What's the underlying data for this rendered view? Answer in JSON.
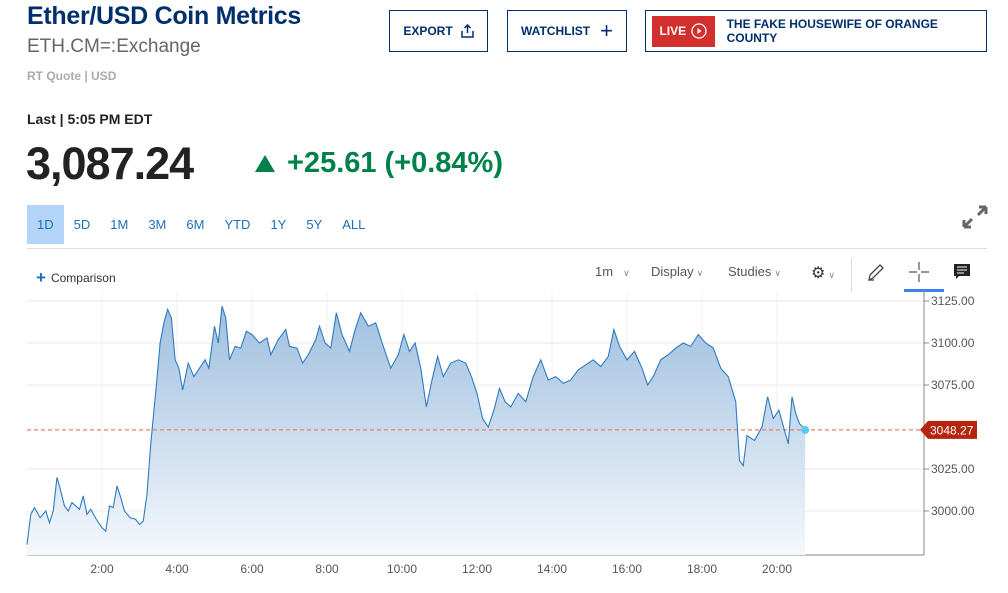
{
  "header": {
    "title": "Ether/USD Coin Metrics",
    "symbol": "ETH.CM=:Exchange",
    "quote_type": "RT Quote | USD"
  },
  "buttons": {
    "export": "EXPORT",
    "watchlist": "WATCHLIST",
    "live_badge": "LIVE",
    "live_show": "THE FAKE HOUSEWIFE OF ORANGE COUNTY"
  },
  "quote": {
    "last_label": "Last | 5:05 PM EDT",
    "price": "3,087.24",
    "change": "+25.61",
    "change_pct": "(+0.84%)",
    "direction": "up",
    "color_up": "#00804a"
  },
  "ranges": [
    {
      "label": "1D",
      "active": true
    },
    {
      "label": "5D"
    },
    {
      "label": "1M"
    },
    {
      "label": "3M"
    },
    {
      "label": "6M"
    },
    {
      "label": "YTD"
    },
    {
      "label": "1Y"
    },
    {
      "label": "5Y"
    },
    {
      "label": "ALL"
    }
  ],
  "toolbar": {
    "comparison": "Comparison",
    "interval": "1m",
    "display": "Display",
    "studies": "Studies"
  },
  "chart_data": {
    "type": "area",
    "xlabel": "",
    "ylabel": "",
    "x_ticks": [
      "2:00",
      "4:00",
      "6:00",
      "8:00",
      "10:00",
      "12:00",
      "14:00",
      "16:00",
      "18:00",
      "20:00"
    ],
    "x_tick_hours": [
      2,
      4,
      6,
      8,
      10,
      12,
      14,
      16,
      18,
      20
    ],
    "y_ticks": [
      "3125.00",
      "3100.00",
      "3075.00",
      "3025.00",
      "3000.00"
    ],
    "y_tick_values": [
      3125,
      3100,
      3075,
      3025,
      3000
    ],
    "xlim": [
      0,
      24
    ],
    "ylim": [
      2974,
      3127
    ],
    "last_value_label": "3048.27",
    "last_value": 3048.27,
    "line_color": "#2e7bbf",
    "ref_color": "#e8806a",
    "label_bg": "#b5240e",
    "points": [
      [
        0,
        2980
      ],
      [
        0.1,
        2998
      ],
      [
        0.2,
        3002
      ],
      [
        0.35,
        2996
      ],
      [
        0.5,
        3000
      ],
      [
        0.6,
        2993
      ],
      [
        0.7,
        3000
      ],
      [
        0.8,
        3020
      ],
      [
        0.9,
        3012
      ],
      [
        1.0,
        3003
      ],
      [
        1.1,
        3000
      ],
      [
        1.2,
        3005
      ],
      [
        1.4,
        3001
      ],
      [
        1.5,
        3009
      ],
      [
        1.6,
        2998
      ],
      [
        1.7,
        3001
      ],
      [
        1.85,
        2995
      ],
      [
        2.0,
        2990
      ],
      [
        2.1,
        2988
      ],
      [
        2.2,
        3003
      ],
      [
        2.3,
        3002
      ],
      [
        2.4,
        3015
      ],
      [
        2.5,
        3008
      ],
      [
        2.6,
        3000
      ],
      [
        2.75,
        2996
      ],
      [
        2.9,
        2995
      ],
      [
        3.0,
        2992
      ],
      [
        3.1,
        2994
      ],
      [
        3.2,
        3010
      ],
      [
        3.3,
        3040
      ],
      [
        3.45,
        3075
      ],
      [
        3.55,
        3100
      ],
      [
        3.65,
        3112
      ],
      [
        3.75,
        3120
      ],
      [
        3.85,
        3115
      ],
      [
        3.95,
        3090
      ],
      [
        4.05,
        3085
      ],
      [
        4.15,
        3072
      ],
      [
        4.3,
        3088
      ],
      [
        4.45,
        3080
      ],
      [
        4.6,
        3085
      ],
      [
        4.75,
        3090
      ],
      [
        4.85,
        3085
      ],
      [
        5.0,
        3110
      ],
      [
        5.1,
        3100
      ],
      [
        5.2,
        3122
      ],
      [
        5.3,
        3115
      ],
      [
        5.4,
        3090
      ],
      [
        5.55,
        3098
      ],
      [
        5.7,
        3097
      ],
      [
        5.85,
        3107
      ],
      [
        6.0,
        3105
      ],
      [
        6.2,
        3100
      ],
      [
        6.4,
        3103
      ],
      [
        6.5,
        3093
      ],
      [
        6.7,
        3102
      ],
      [
        6.9,
        3108
      ],
      [
        7.0,
        3098
      ],
      [
        7.2,
        3097
      ],
      [
        7.35,
        3088
      ],
      [
        7.5,
        3093
      ],
      [
        7.7,
        3102
      ],
      [
        7.8,
        3110
      ],
      [
        7.95,
        3100
      ],
      [
        8.1,
        3097
      ],
      [
        8.25,
        3118
      ],
      [
        8.4,
        3105
      ],
      [
        8.6,
        3095
      ],
      [
        8.75,
        3108
      ],
      [
        8.9,
        3118
      ],
      [
        9.1,
        3110
      ],
      [
        9.3,
        3112
      ],
      [
        9.5,
        3098
      ],
      [
        9.7,
        3085
      ],
      [
        9.9,
        3093
      ],
      [
        10.05,
        3105
      ],
      [
        10.2,
        3095
      ],
      [
        10.35,
        3100
      ],
      [
        10.5,
        3085
      ],
      [
        10.65,
        3062
      ],
      [
        10.8,
        3078
      ],
      [
        10.95,
        3092
      ],
      [
        11.1,
        3080
      ],
      [
        11.3,
        3088
      ],
      [
        11.5,
        3090
      ],
      [
        11.7,
        3088
      ],
      [
        11.85,
        3080
      ],
      [
        12.0,
        3070
      ],
      [
        12.15,
        3055
      ],
      [
        12.3,
        3050
      ],
      [
        12.45,
        3060
      ],
      [
        12.6,
        3073
      ],
      [
        12.75,
        3065
      ],
      [
        12.9,
        3062
      ],
      [
        13.1,
        3070
      ],
      [
        13.3,
        3065
      ],
      [
        13.5,
        3080
      ],
      [
        13.7,
        3090
      ],
      [
        13.9,
        3078
      ],
      [
        14.1,
        3080
      ],
      [
        14.3,
        3076
      ],
      [
        14.5,
        3078
      ],
      [
        14.7,
        3084
      ],
      [
        14.9,
        3087
      ],
      [
        15.1,
        3090
      ],
      [
        15.3,
        3086
      ],
      [
        15.5,
        3092
      ],
      [
        15.65,
        3108
      ],
      [
        15.8,
        3098
      ],
      [
        16.0,
        3090
      ],
      [
        16.2,
        3095
      ],
      [
        16.4,
        3085
      ],
      [
        16.55,
        3075
      ],
      [
        16.7,
        3080
      ],
      [
        16.9,
        3090
      ],
      [
        17.1,
        3093
      ],
      [
        17.3,
        3097
      ],
      [
        17.5,
        3100
      ],
      [
        17.7,
        3098
      ],
      [
        17.9,
        3105
      ],
      [
        18.1,
        3100
      ],
      [
        18.3,
        3097
      ],
      [
        18.5,
        3085
      ],
      [
        18.7,
        3080
      ],
      [
        18.9,
        3065
      ],
      [
        19.0,
        3030
      ],
      [
        19.1,
        3027
      ],
      [
        19.2,
        3045
      ],
      [
        19.4,
        3042
      ],
      [
        19.6,
        3050
      ],
      [
        19.75,
        3068
      ],
      [
        19.9,
        3055
      ],
      [
        20.05,
        3060
      ],
      [
        20.2,
        3048
      ],
      [
        20.3,
        3040
      ],
      [
        20.4,
        3068
      ],
      [
        20.5,
        3058
      ],
      [
        20.6,
        3052
      ],
      [
        20.75,
        3048.27
      ]
    ]
  }
}
